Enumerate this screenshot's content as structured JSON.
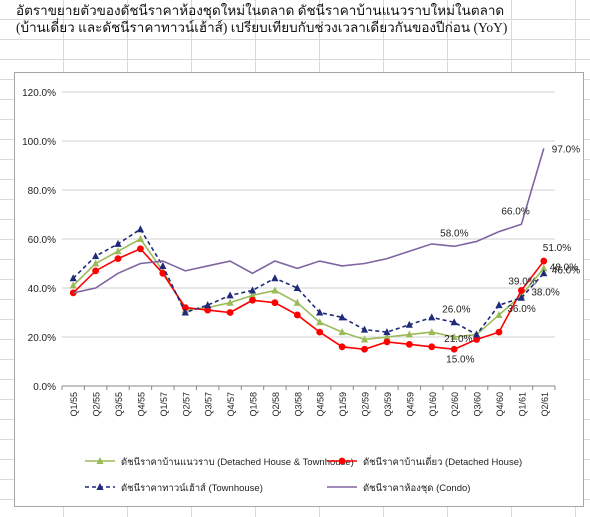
{
  "title": {
    "line1": "อัตราขยายตัวของดัชนีราคาห้องชุดใหม่ในตลาด ดัชนีราคาบ้านแนวราบใหม่ในตลาด",
    "line2": "(บ้านเดี่ยว และดัชนีราคาทาวน์เฮ้าส์) เปรียบเทียบกับช่วงเวลาเดียวกันของปีก่อน (YoY)"
  },
  "chart_data": {
    "type": "line",
    "categories": [
      "Q1/55",
      "Q2/55",
      "Q3/55",
      "Q4/55",
      "Q1/57",
      "Q2/57",
      "Q3/57",
      "Q4/57",
      "Q1/58",
      "Q2/58",
      "Q3/58",
      "Q4/58",
      "Q1/59",
      "Q2/59",
      "Q3/59",
      "Q4/59",
      "Q1/60",
      "Q2/60",
      "Q3/60",
      "Q4/60",
      "Q1/61",
      "Q2/61"
    ],
    "ylim": [
      0,
      120
    ],
    "yticks": [
      0,
      20,
      40,
      60,
      80,
      100,
      120
    ],
    "ytick_labels": [
      "0.0%",
      "20.0%",
      "40.0%",
      "60.0%",
      "80.0%",
      "100.0%",
      "120.0%"
    ],
    "grid": true,
    "legend_position": "bottom",
    "series": [
      {
        "name": "ดัชนีราคาบ้านแนวราบ (Detached House & Townhouse)",
        "color": "#9bbb59",
        "style": "solid",
        "marker": "triangle",
        "values": [
          41,
          50,
          55,
          60,
          47,
          31,
          32,
          34,
          37,
          39,
          34,
          26,
          22,
          19,
          20,
          21,
          22,
          20,
          21,
          29,
          37,
          48
        ]
      },
      {
        "name": "ดัชนีราคาบ้านเดี่ยว (Detached House)",
        "color": "#ff0000",
        "style": "solid",
        "marker": "circle",
        "values": [
          38,
          47,
          52,
          56,
          46,
          32,
          31,
          30,
          35,
          34,
          29,
          22,
          16,
          15,
          18,
          17,
          16,
          15,
          19,
          22,
          39,
          51
        ]
      },
      {
        "name": "ดัชนีราคาทาวน์เฮ้าส์ (Townhouse)",
        "color": "#1f2a7a",
        "style": "dashed",
        "marker": "triangle",
        "values": [
          44,
          53,
          58,
          64,
          49,
          30,
          33,
          37,
          39,
          44,
          40,
          30,
          28,
          23,
          22,
          25,
          28,
          26,
          21,
          33,
          36,
          46
        ]
      },
      {
        "name": "ดัชนีราคาห้องชุด (Condo)",
        "color": "#8064a2",
        "style": "solid",
        "marker": "none",
        "values": [
          38,
          40,
          46,
          50,
          51,
          47,
          49,
          51,
          46,
          51,
          48,
          51,
          49,
          50,
          52,
          55,
          58,
          57,
          59,
          63,
          66,
          97
        ]
      }
    ],
    "annotations": [
      "58.0%",
      "66.0%",
      "97.0%",
      "51.0%",
      "48.0%",
      "46.0%",
      "39.0%",
      "38.0%",
      "36.0%",
      "26.0%",
      "21.0%",
      "15.0%"
    ]
  }
}
